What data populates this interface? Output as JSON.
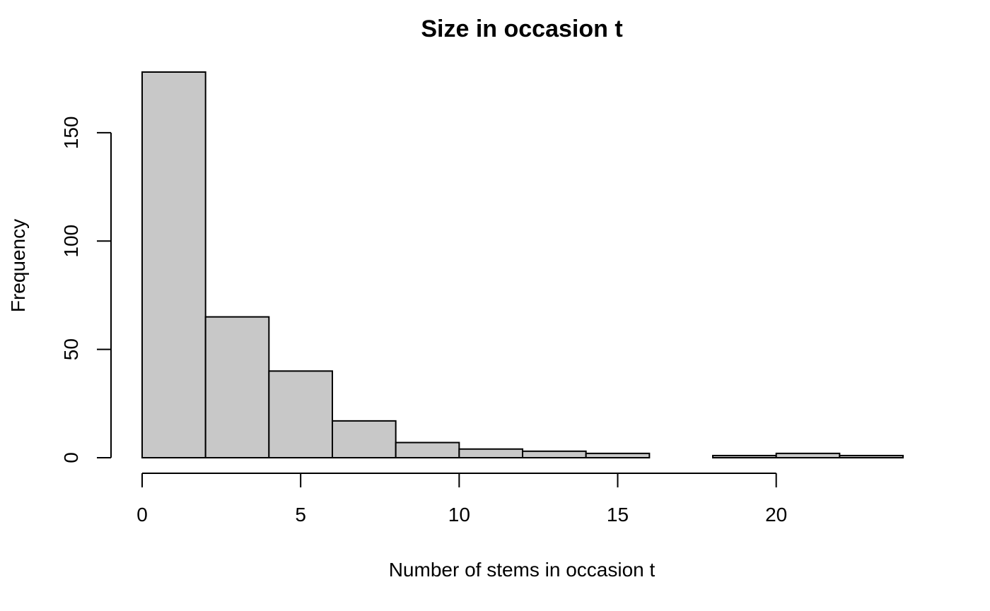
{
  "chart_data": {
    "type": "bar",
    "subtype": "histogram",
    "title": "Size in occasion t",
    "xlabel": "Number of stems in occasion t",
    "ylabel": "Frequency",
    "bins": [
      {
        "start": 0,
        "end": 2,
        "count": 178
      },
      {
        "start": 2,
        "end": 4,
        "count": 65
      },
      {
        "start": 4,
        "end": 6,
        "count": 40
      },
      {
        "start": 6,
        "end": 8,
        "count": 17
      },
      {
        "start": 8,
        "end": 10,
        "count": 7
      },
      {
        "start": 10,
        "end": 12,
        "count": 4
      },
      {
        "start": 12,
        "end": 14,
        "count": 3
      },
      {
        "start": 14,
        "end": 16,
        "count": 2
      },
      {
        "start": 16,
        "end": 18,
        "count": 0
      },
      {
        "start": 18,
        "end": 20,
        "count": 1
      },
      {
        "start": 20,
        "end": 22,
        "count": 2
      },
      {
        "start": 22,
        "end": 24,
        "count": 1
      }
    ],
    "xticks": [
      "0",
      "5",
      "10",
      "15",
      "20"
    ],
    "yticks": [
      "0",
      "50",
      "100",
      "150"
    ],
    "xlim": [
      0,
      24
    ],
    "ylim": [
      0,
      178
    ],
    "grid": false,
    "legend": "none",
    "colors": {
      "bar_fill": "#c8c8c8",
      "bar_stroke": "#000000",
      "axis": "#000000"
    }
  }
}
